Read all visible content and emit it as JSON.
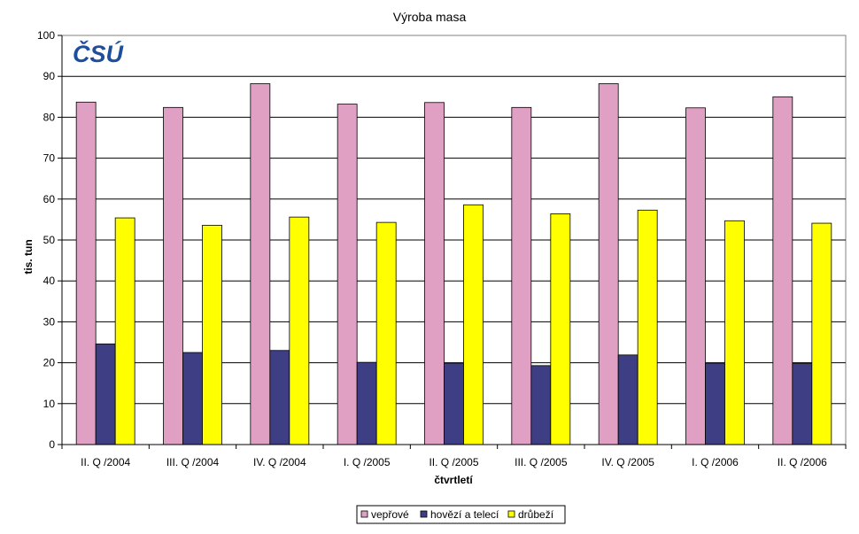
{
  "logo": {
    "text": "ČSÚ",
    "color": "#1f4e9c"
  },
  "chart_data": {
    "type": "bar",
    "title": "Výroba masa",
    "xlabel": "čtvrtletí",
    "ylabel": "tis. tun",
    "ylim": [
      0,
      100
    ],
    "yticks": [
      0,
      10,
      20,
      30,
      40,
      50,
      60,
      70,
      80,
      90,
      100
    ],
    "grid": true,
    "legend_position": "bottom-center",
    "categories": [
      "II. Q /2004",
      "III. Q /2004",
      "IV. Q /2004",
      "I. Q /2005",
      "II. Q /2005",
      "III. Q /2005",
      "IV. Q /2005",
      "I. Q /2006",
      "II. Q /2006"
    ],
    "series": [
      {
        "name": "vepřové",
        "color": "#dfa0c4",
        "values": [
          83.7,
          82.4,
          88.2,
          83.2,
          83.6,
          82.4,
          88.2,
          82.3,
          85.0
        ]
      },
      {
        "name": "hovězí a telecí",
        "color": "#3e3e84",
        "values": [
          24.6,
          22.5,
          23.0,
          20.1,
          19.9,
          19.3,
          21.9,
          19.9,
          19.8
        ]
      },
      {
        "name": "drůbeží",
        "color": "#ffff00",
        "values": [
          55.4,
          53.6,
          55.6,
          54.3,
          58.6,
          56.4,
          57.3,
          54.7,
          54.1
        ]
      }
    ]
  }
}
